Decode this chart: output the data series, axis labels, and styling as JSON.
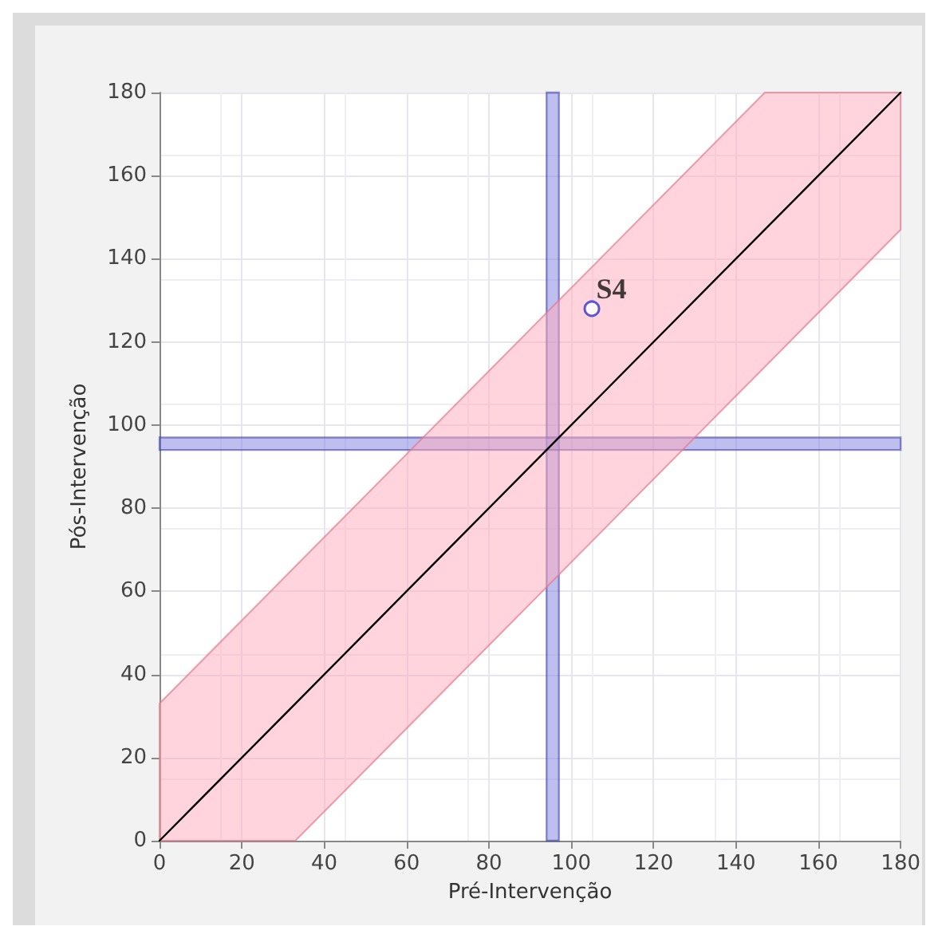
{
  "chart_data": {
    "type": "scatter",
    "xlabel": "Pré-Intervenção",
    "ylabel": "Pós-Intervenção",
    "xlim": [
      0,
      180
    ],
    "ylim": [
      0,
      180
    ],
    "xticks": [
      0,
      20,
      40,
      60,
      80,
      100,
      120,
      140,
      160,
      180
    ],
    "yticks": [
      0,
      20,
      40,
      60,
      80,
      100,
      120,
      140,
      160,
      180
    ],
    "grid": true,
    "legend": false,
    "series": [
      {
        "type": "line",
        "color": "#000000",
        "marker": "none",
        "x": [
          0,
          33,
          147,
          180
        ],
        "values": [
          0,
          33,
          147,
          180
        ],
        "lower": [
          0,
          0,
          114,
          147
        ],
        "upper": [
          33,
          66,
          180,
          180
        ]
      },
      {
        "name": "S4",
        "color": "#3333cc",
        "marker": "circle",
        "x": [
          105
        ],
        "values": [
          128
        ]
      }
    ],
    "bands": [
      {
        "axis": "x",
        "from": 94,
        "to": 97,
        "color": "#8080e0"
      },
      {
        "axis": "y",
        "from": 94,
        "to": 97,
        "color": "#8080e0"
      }
    ]
  }
}
